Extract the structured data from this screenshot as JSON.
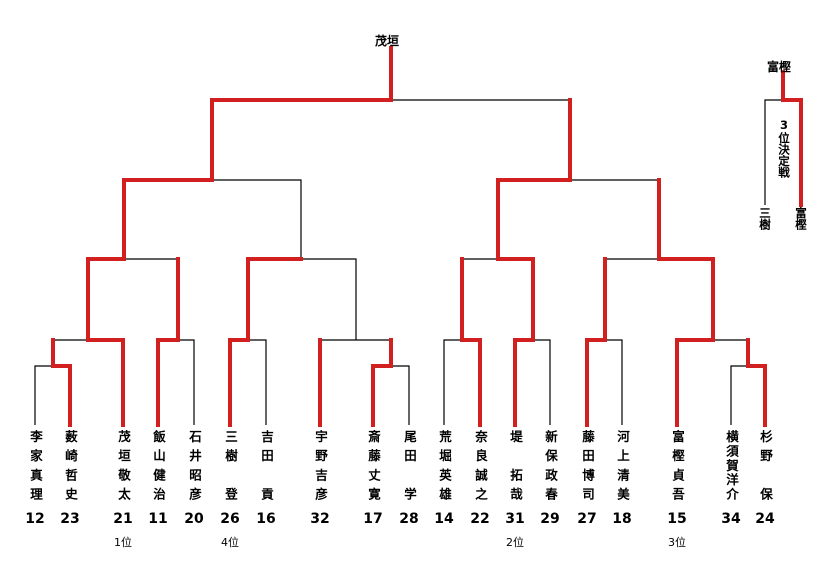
{
  "champion": "茂垣",
  "third_place": {
    "winner_label": "富樫",
    "title": "3位決定戦",
    "left_name": "三樹",
    "right_name": "富樫"
  },
  "players": [
    {
      "name": "李家真理",
      "number": "12",
      "rank": ""
    },
    {
      "name": "薮崎哲史",
      "number": "23",
      "rank": ""
    },
    {
      "name": "茂垣敬太",
      "number": "21",
      "rank": "1位"
    },
    {
      "name": "飯山健治",
      "number": "11",
      "rank": ""
    },
    {
      "name": "石井昭彦",
      "number": "20",
      "rank": ""
    },
    {
      "name": "三樹　登",
      "number": "26",
      "rank": "4位"
    },
    {
      "name": "吉田　貢",
      "number": "16",
      "rank": ""
    },
    {
      "name": "宇野吉彦",
      "number": "32",
      "rank": ""
    },
    {
      "name": "斎藤丈寛",
      "number": "17",
      "rank": ""
    },
    {
      "name": "尾田　学",
      "number": "28",
      "rank": ""
    },
    {
      "name": "荒堀英雄",
      "number": "14",
      "rank": ""
    },
    {
      "name": "奈良誠之",
      "number": "22",
      "rank": ""
    },
    {
      "name": "堤　拓哉",
      "number": "31",
      "rank": "2位"
    },
    {
      "name": "新保政春",
      "number": "29",
      "rank": ""
    },
    {
      "name": "藤田博司",
      "number": "27",
      "rank": ""
    },
    {
      "name": "河上清美",
      "number": "18",
      "rank": ""
    },
    {
      "name": "富樫貞吾",
      "number": "15",
      "rank": "3位"
    },
    {
      "name": "横須賀洋介",
      "number": "34",
      "rank": ""
    },
    {
      "name": "杉野　保",
      "number": "24",
      "rank": ""
    }
  ],
  "colors": {
    "win_line": "#d21f1f",
    "line": "#000000"
  }
}
